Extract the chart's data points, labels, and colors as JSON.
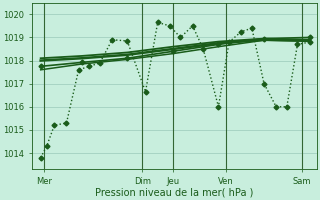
{
  "background_color": "#c8eedd",
  "grid_color": "#a8d4c4",
  "line_color": "#1a5c1a",
  "vline_color": "#336633",
  "title": "Pression niveau de la mer( hPa )",
  "ylim": [
    1013.3,
    1020.5
  ],
  "yticks": [
    1014,
    1015,
    1016,
    1017,
    1018,
    1019,
    1020
  ],
  "xlim": [
    -0.3,
    18.5
  ],
  "day_vlines_x": [
    0.5,
    7.0,
    9.0,
    12.5,
    17.5
  ],
  "xtick_positions": [
    0.5,
    7.0,
    9.0,
    12.5,
    17.5
  ],
  "xtick_labels": [
    "Mer",
    "Dim",
    "Jeu",
    "Ven",
    "Sam"
  ],
  "series": [
    {
      "x": [
        0.3,
        0.7,
        1.2,
        2.0,
        2.8,
        3.5,
        4.2,
        5.0,
        6.0,
        7.2,
        8.0,
        8.8,
        9.5,
        10.3,
        11.0,
        12.0,
        12.7,
        13.5,
        14.2,
        15.0,
        15.8,
        16.5,
        17.2,
        18.0
      ],
      "y": [
        1013.8,
        1014.3,
        1015.2,
        1015.3,
        1017.6,
        1017.75,
        1017.9,
        1018.9,
        1018.85,
        1016.65,
        1019.65,
        1019.5,
        1019.0,
        1019.5,
        1018.5,
        1016.0,
        1018.8,
        1019.25,
        1019.4,
        1017.0,
        1016.0,
        1016.0,
        1018.7,
        1018.8
      ],
      "linestyle": "dotted",
      "marker": "D",
      "markersize": 2.5,
      "linewidth": 1.0,
      "zorder": 4
    },
    {
      "x": [
        0.3,
        3.0,
        6.0,
        9.0,
        12.0,
        15.0,
        18.0
      ],
      "y": [
        1018.0,
        1018.1,
        1018.25,
        1018.5,
        1018.75,
        1018.9,
        1018.85
      ],
      "linestyle": "solid",
      "marker": null,
      "markersize": 0,
      "linewidth": 1.8,
      "zorder": 3
    },
    {
      "x": [
        0.3,
        3.0,
        6.0,
        9.0,
        12.0,
        15.0,
        18.0
      ],
      "y": [
        1017.75,
        1017.92,
        1018.1,
        1018.4,
        1018.7,
        1018.95,
        1019.0
      ],
      "linestyle": "solid",
      "marker": "D",
      "markersize": 2.5,
      "linewidth": 1.2,
      "zorder": 3
    },
    {
      "x": [
        0.3,
        3.0,
        6.0,
        9.0,
        12.0,
        15.0,
        18.0
      ],
      "y": [
        1017.6,
        1017.85,
        1018.05,
        1018.3,
        1018.6,
        1018.88,
        1018.85
      ],
      "linestyle": "solid",
      "marker": null,
      "markersize": 0,
      "linewidth": 1.1,
      "zorder": 3
    },
    {
      "x": [
        0.3,
        3.0,
        6.0,
        9.0,
        12.0,
        15.0,
        18.0
      ],
      "y": [
        1018.1,
        1018.2,
        1018.35,
        1018.6,
        1018.82,
        1018.95,
        1018.9
      ],
      "linestyle": "solid",
      "marker": null,
      "markersize": 0,
      "linewidth": 1.3,
      "zorder": 3
    }
  ]
}
